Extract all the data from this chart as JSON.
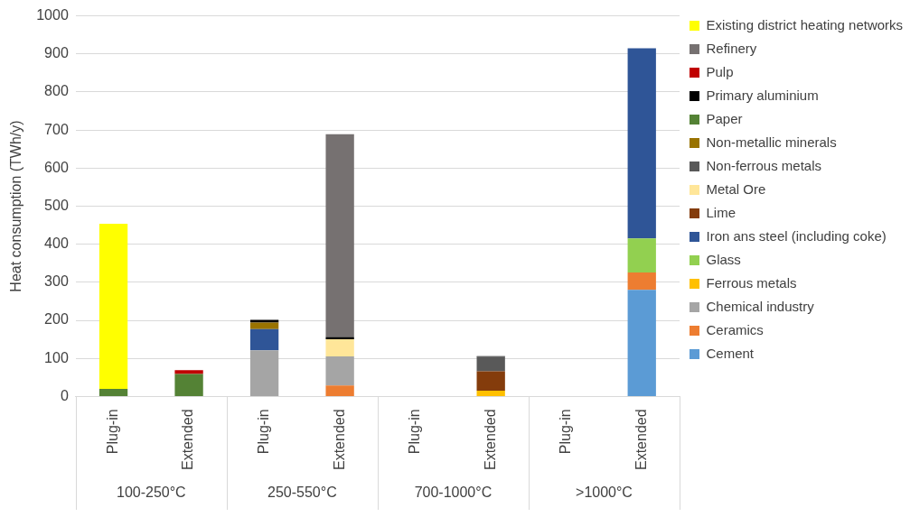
{
  "chart_data": {
    "type": "bar",
    "stacked": true,
    "ylabel": "Heat consumption (TWh/y)",
    "categories": [
      "Plug-in",
      "Extended",
      "Plug-in",
      "Extended",
      "Plug-in",
      "Extended",
      "Plug-in",
      "Extended"
    ],
    "annotations": [
      "100-250°C",
      "250-550°C",
      "700-1000°C",
      ">1000°C"
    ],
    "ylim": [
      0,
      1000
    ],
    "yticks": [
      0,
      100,
      200,
      300,
      400,
      500,
      600,
      700,
      800,
      900,
      1000
    ],
    "grid": "y",
    "legend": "right",
    "series": [
      {
        "name": "Cement",
        "color": "#5b9bd5",
        "values": [
          null,
          null,
          null,
          null,
          null,
          null,
          null,
          280
        ]
      },
      {
        "name": "Ceramics",
        "color": "#ed7d31",
        "values": [
          null,
          null,
          null,
          29,
          null,
          null,
          null,
          46
        ]
      },
      {
        "name": "Chemical industry",
        "color": "#a5a5a5",
        "values": [
          null,
          null,
          121,
          76,
          null,
          null,
          null,
          null
        ]
      },
      {
        "name": "Ferrous metals",
        "color": "#ffc000",
        "values": [
          null,
          null,
          null,
          null,
          null,
          15,
          null,
          null
        ]
      },
      {
        "name": "Glass",
        "color": "#92d050",
        "values": [
          null,
          null,
          null,
          null,
          null,
          null,
          null,
          89
        ]
      },
      {
        "name": "Iron ans steel (including coke)",
        "color": "#2f5597",
        "values": [
          null,
          null,
          56,
          null,
          null,
          null,
          null,
          500
        ]
      },
      {
        "name": "Lime",
        "color": "#843c0c",
        "values": [
          null,
          null,
          null,
          null,
          null,
          51,
          null,
          null
        ]
      },
      {
        "name": "Metal Ore",
        "color": "#ffe699",
        "values": [
          null,
          null,
          null,
          45,
          null,
          null,
          null,
          null
        ]
      },
      {
        "name": "Non-ferrous metals",
        "color": "#595959",
        "values": [
          null,
          null,
          null,
          null,
          null,
          38,
          null,
          null
        ]
      },
      {
        "name": "Non-metallic minerals",
        "color": "#997300",
        "values": [
          null,
          null,
          17,
          null,
          null,
          null,
          null,
          null
        ]
      },
      {
        "name": "Paper",
        "color": "#548235",
        "values": [
          20,
          59,
          null,
          null,
          null,
          null,
          null,
          null
        ]
      },
      {
        "name": "Primary aluminium",
        "color": "#000000",
        "values": [
          null,
          null,
          7,
          6,
          null,
          2,
          null,
          null
        ]
      },
      {
        "name": "Pulp",
        "color": "#c00000",
        "values": [
          null,
          10,
          null,
          null,
          null,
          null,
          null,
          null
        ]
      },
      {
        "name": "Refinery",
        "color": "#767171",
        "values": [
          null,
          null,
          null,
          533,
          null,
          null,
          null,
          null
        ]
      },
      {
        "name": "Existing district heating networks",
        "color": "#ffff00",
        "values": [
          434,
          null,
          null,
          null,
          null,
          null,
          null,
          null
        ]
      }
    ]
  }
}
